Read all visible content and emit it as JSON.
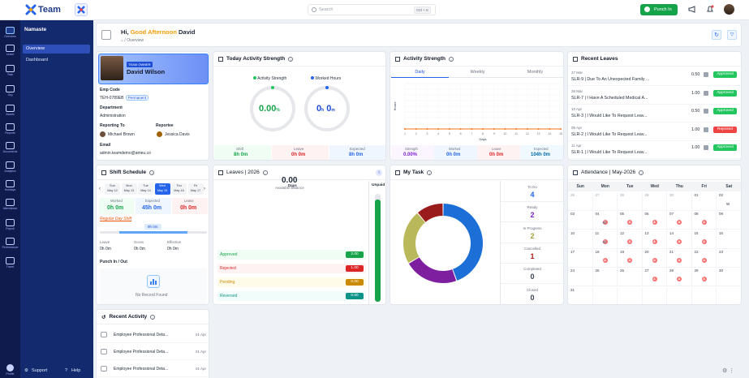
{
  "app": {
    "brand": "Team",
    "search_placeholder": "Search",
    "search_shortcut": "Ctrl + K",
    "punch_in_label": "Punch In"
  },
  "rail": {
    "items": [
      "Overview",
      "Leave",
      "Task",
      "Org",
      "Assets",
      "Reports",
      "Documents",
      "Analytics",
      "Holidays",
      "Attendance",
      "Payroll",
      "Performance",
      "Travel"
    ],
    "bottom": "Profile"
  },
  "subnav": {
    "section": "Namaste",
    "items": [
      "Overview",
      "Dashboard"
    ],
    "support": "Support",
    "help": "Help"
  },
  "header": {
    "greeting_prefix": "Hi,",
    "greeting_time": "Good Afternoon",
    "user_name": "David",
    "crumb": "Overview"
  },
  "profile": {
    "badge": "TEAM OWNER",
    "name": "David Wilson",
    "emp_code_label": "Emp Code",
    "emp_code": "TEH-0789EB",
    "status": "Permanent",
    "department_label": "Department",
    "department": "Administration",
    "reporting_to_label": "Reporting To",
    "reporting_to": "Michael Brown",
    "reportee_label": "Reportee",
    "reportee": "Jessica Davis",
    "email_label": "Email",
    "email": "admin.teamdemo@ameu.co"
  },
  "today_activity": {
    "title": "Today Activity Strength",
    "legend_activity": "Activity Strength",
    "legend_worked": "Worked Hours",
    "activity_pct": "0.00",
    "activity_unit": "%",
    "worked_h": "0",
    "worked_m": "0",
    "h_unit": "h",
    "m_unit": "m",
    "shift_label": "Shift",
    "shift_value": "8h 0m",
    "leave_label": "Leave",
    "leave_value": "0h 0m",
    "expected_label": "Expected",
    "expected_value": "8h 0m"
  },
  "activity_chart": {
    "title": "Activity Strength",
    "tabs": [
      "Daily",
      "Weekly",
      "Monthly"
    ],
    "xlabel": "Days",
    "ylabel": "Hours",
    "strength_label": "Strength",
    "strength_value": "0.00%",
    "worked_label": "Worked",
    "worked_value": "0h 0m",
    "leave_label": "Leave",
    "leave_value": "0h 0m",
    "expected_label": "Expected",
    "expected_value": "104h 0m"
  },
  "chart_data": {
    "type": "line",
    "title": "Activity Strength",
    "xlabel": "Days",
    "ylabel": "Hours",
    "x": [
      "1",
      "2",
      "3",
      "4",
      "5",
      "6",
      "7",
      "8",
      "9",
      "10",
      "11",
      "12",
      "13",
      "14",
      "15"
    ],
    "series": [
      {
        "name": "",
        "values": [
          0,
          0,
          0,
          0,
          0,
          0,
          0,
          0,
          0,
          0,
          0,
          0,
          0,
          0,
          0
        ]
      }
    ],
    "colors": {
      "line": "#f97316"
    }
  },
  "recent_leaves": {
    "title": "Recent Leaves",
    "items": [
      {
        "date": "27 Mar",
        "text": "SLR-9 | Due To An Unexpected Family ...",
        "days": "0.50",
        "status": "Approved",
        "color": "#22c55e"
      },
      {
        "date": "26 Mar",
        "text": "SLR-7 | I Have A Scheduled Medical A...",
        "days": "1.00",
        "status": "Approved",
        "color": "#22c55e"
      },
      {
        "date": "10 Apr",
        "text": "SLR-3 | I Would Like To Request Leav...",
        "days": "0.50",
        "status": "Approved",
        "color": "#22c55e"
      },
      {
        "date": "09 Apr",
        "text": "SLR-2 | I Would Like To Request Leav...",
        "days": "1.00",
        "status": "Rejected",
        "color": "#ef4444"
      },
      {
        "date": "11 Apr",
        "text": "SLR-1 | I Would Like To Request Leav...",
        "days": "1.00",
        "status": "Approved",
        "color": "#22c55e"
      }
    ]
  },
  "shift": {
    "title": "Shift Schedule",
    "days": [
      {
        "d": "Sun",
        "n": "May 12"
      },
      {
        "d": "Mon",
        "n": "May 13"
      },
      {
        "d": "Tue",
        "n": "May 14"
      },
      {
        "d": "Wed",
        "n": "May 15"
      },
      {
        "d": "Thu",
        "n": "May 16"
      },
      {
        "d": "Fri",
        "n": "May 17"
      }
    ],
    "worked_label": "Worked",
    "worked_value": "0h 0m",
    "expected_label": "Expected",
    "expected_value": "45h 0m",
    "leave_label": "Leave",
    "leave_value": "0h 0m",
    "regular": "Regular Day Shift",
    "bar_value": "9h 0m",
    "leave2_label": "Leave",
    "leave2_value": "0h 0m",
    "gross_label": "Gross",
    "gross_value": "0h 0m",
    "effective_label": "Effective",
    "effective_value": "0h 0m",
    "punch_label": "Punch In / Out",
    "empty": "No Record Found"
  },
  "leaves": {
    "title": "Leaves | 2026",
    "total": "0.00",
    "total_sub": "Days",
    "available": "Available Balance",
    "unpaid": "Unpaid",
    "rows": [
      {
        "label": "Approved",
        "value": "2.00",
        "color": "#16a34a"
      },
      {
        "label": "Rejected",
        "value": "1.00",
        "color": "#dc2626"
      },
      {
        "label": "Pending",
        "value": "0.00",
        "color": "#ca8a04"
      },
      {
        "label": "Reversed",
        "value": "0.00",
        "color": "#0d9488"
      }
    ],
    "unpaid_fill": 0.95
  },
  "mytask": {
    "title": "My Task",
    "stats": [
      {
        "label": "To Do",
        "value": "4",
        "color": "#2563eb"
      },
      {
        "label": "Ready",
        "value": "2",
        "color": "#7e22ce"
      },
      {
        "label": "In Progress",
        "value": "2",
        "color": "#a3a33a"
      },
      {
        "label": "Cancelled",
        "value": "1",
        "color": "#b91c1c"
      },
      {
        "label": "Completed",
        "value": "0",
        "color": "#374151"
      },
      {
        "label": "Closed",
        "value": "0",
        "color": "#374151"
      }
    ],
    "slices": [
      {
        "value": 4,
        "color": "#1d6fd8"
      },
      {
        "value": 2,
        "color": "#7e1fa0"
      },
      {
        "value": 2,
        "color": "#b9b85a"
      },
      {
        "value": 1,
        "color": "#991b1b"
      }
    ]
  },
  "attendance": {
    "title": "Attendance | May-2026",
    "headers": [
      "Sun",
      "Mon",
      "Tue",
      "Wed",
      "Thu",
      "Fri",
      "Sat"
    ],
    "weeks": [
      [
        "26",
        "27",
        "28",
        "29",
        "30",
        "01",
        "02"
      ],
      [
        "03",
        "04",
        "05",
        "06",
        "07",
        "08",
        "09"
      ],
      [
        "10",
        "11",
        "12",
        "13",
        "14",
        "15",
        "16"
      ],
      [
        "17",
        "18",
        "19",
        "20",
        "21",
        "22",
        "23"
      ],
      [
        "24",
        "25",
        "26",
        "27",
        "28",
        "29",
        "30"
      ],
      [
        "31",
        "",
        "",
        "",
        "",
        "",
        ""
      ]
    ],
    "absent": "A",
    "weekend": "W"
  },
  "recent_activity": {
    "title": "Recent Activity",
    "items": [
      {
        "text": "Employee Professional Deta...",
        "date": "01 Apr"
      },
      {
        "text": "Employee Professional Deta...",
        "date": "01 Apr"
      },
      {
        "text": "Employee Professional Deta...",
        "date": "01 Apr"
      }
    ]
  }
}
